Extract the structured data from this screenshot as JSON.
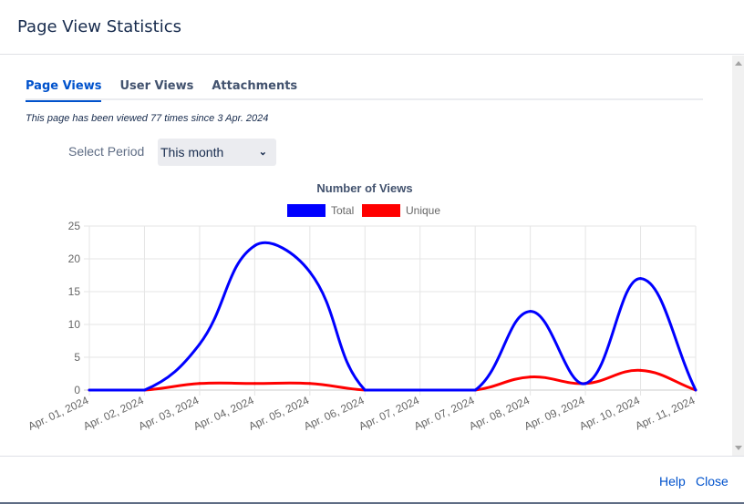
{
  "dialog": {
    "title": "Page View Statistics"
  },
  "tabs": [
    {
      "label": "Page Views",
      "active": true
    },
    {
      "label": "User Views"
    },
    {
      "label": "Attachments"
    }
  ],
  "info_text": "This page has been viewed 77 times since 3 Apr. 2024",
  "period": {
    "label": "Select Period",
    "value": "This month",
    "icon": "chevron-down-icon"
  },
  "chart_data": {
    "type": "line",
    "title": "Number of Views",
    "categories": [
      "Apr. 01, 2024",
      "Apr. 02, 2024",
      "Apr. 03, 2024",
      "Apr. 04, 2024",
      "Apr. 05, 2024",
      "Apr. 06, 2024",
      "Apr. 07, 2024",
      "Apr. 07, 2024",
      "Apr. 08, 2024",
      "Apr. 09, 2024",
      "Apr. 10, 2024",
      "Apr. 11, 2024"
    ],
    "series": [
      {
        "name": "Total",
        "color": "#0000ff",
        "values": [
          0,
          0,
          7,
          22,
          18,
          0,
          0,
          0,
          12,
          1,
          17,
          0
        ]
      },
      {
        "name": "Unique",
        "color": "#ff0000",
        "values": [
          0,
          0,
          1,
          1,
          1,
          0,
          0,
          0,
          2,
          1,
          3,
          0
        ]
      }
    ],
    "ylim": [
      0,
      25
    ],
    "yticks": [
      "0",
      "5",
      "10",
      "15",
      "20",
      "25"
    ],
    "grid": true,
    "legend": "top"
  },
  "footer": {
    "help": "Help",
    "close": "Close"
  }
}
